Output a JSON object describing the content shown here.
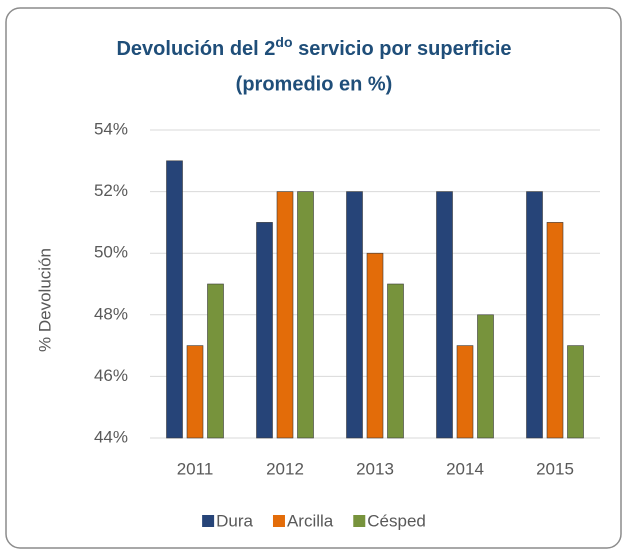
{
  "chart_data": {
    "type": "bar",
    "title": [
      "Devolución del 2",
      "do",
      " servicio por superficie",
      "(promedio en %)"
    ],
    "y_label": "% Devolución",
    "categories": [
      "2011",
      "2012",
      "2013",
      "2014",
      "2015"
    ],
    "series": [
      {
        "name": "Dura",
        "color": "#264478",
        "values": [
          53,
          51,
          52,
          52,
          52
        ]
      },
      {
        "name": "Arcilla",
        "color": "#E36C09",
        "values": [
          47,
          52,
          50,
          47,
          51
        ]
      },
      {
        "name": "Césped",
        "color": "#77933C",
        "values": [
          49,
          52,
          49,
          48,
          47
        ]
      }
    ],
    "ylim": [
      44,
      54
    ],
    "yticks": [
      {
        "value": 44,
        "label": "44%"
      },
      {
        "value": 46,
        "label": "46%"
      },
      {
        "value": 48,
        "label": "48%"
      },
      {
        "value": 50,
        "label": "50%"
      },
      {
        "value": 52,
        "label": "52%"
      },
      {
        "value": 54,
        "label": "54%"
      }
    ],
    "grid": true,
    "legend": "bottom"
  }
}
